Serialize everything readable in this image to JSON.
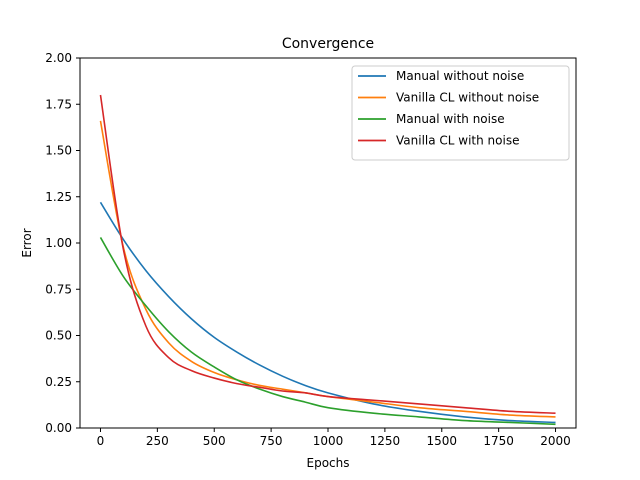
{
  "chart_data": {
    "type": "line",
    "title": "Convergence",
    "xlabel": "Epochs",
    "ylabel": "Error",
    "xlim": [
      -90,
      2090
    ],
    "ylim": [
      0.0,
      2.0
    ],
    "xticks": [
      0,
      250,
      500,
      750,
      1000,
      1250,
      1500,
      1750,
      2000
    ],
    "yticks": [
      0.0,
      0.25,
      0.5,
      0.75,
      1.0,
      1.25,
      1.5,
      1.75,
      2.0
    ],
    "ytick_labels": [
      "0.00",
      "0.25",
      "0.50",
      "0.75",
      "1.00",
      "1.25",
      "1.50",
      "1.75",
      "2.00"
    ],
    "legend_position": "top-right",
    "grid": false,
    "x": [
      0,
      100,
      200,
      300,
      400,
      500,
      600,
      700,
      800,
      900,
      1000,
      1200,
      1400,
      1600,
      1800,
      2000
    ],
    "series": [
      {
        "name": "Manual without noise",
        "color": "#1f77b4",
        "values": [
          1.22,
          1.02,
          0.85,
          0.71,
          0.59,
          0.49,
          0.41,
          0.34,
          0.28,
          0.23,
          0.19,
          0.13,
          0.09,
          0.06,
          0.04,
          0.03
        ]
      },
      {
        "name": "Vanilla CL without noise",
        "color": "#ff7f0e",
        "values": [
          1.66,
          0.98,
          0.64,
          0.46,
          0.36,
          0.3,
          0.26,
          0.23,
          0.21,
          0.19,
          0.17,
          0.14,
          0.11,
          0.09,
          0.07,
          0.06
        ]
      },
      {
        "name": "Manual with noise",
        "color": "#2ca02c",
        "values": [
          1.03,
          0.82,
          0.66,
          0.52,
          0.41,
          0.33,
          0.26,
          0.21,
          0.17,
          0.14,
          0.11,
          0.08,
          0.06,
          0.04,
          0.03,
          0.02
        ]
      },
      {
        "name": "Vanilla CL with noise",
        "color": "#d62728",
        "values": [
          1.8,
          0.97,
          0.55,
          0.38,
          0.31,
          0.27,
          0.24,
          0.22,
          0.2,
          0.19,
          0.17,
          0.15,
          0.13,
          0.11,
          0.09,
          0.08
        ]
      }
    ]
  }
}
